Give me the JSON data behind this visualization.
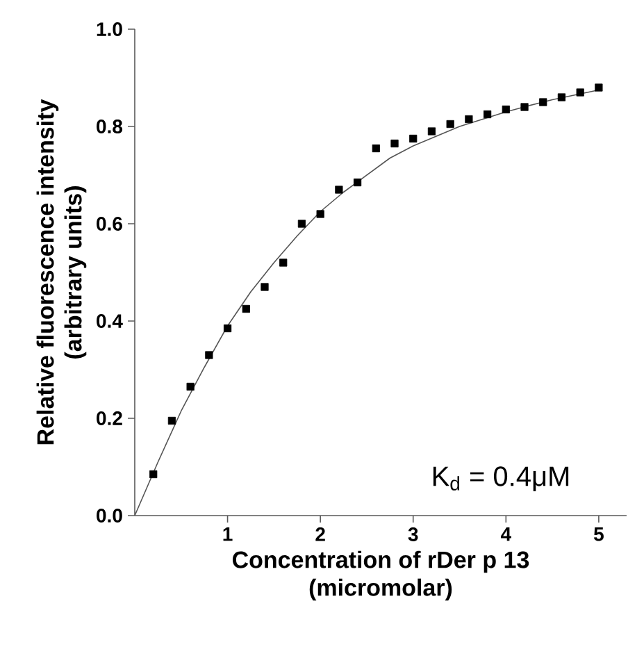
{
  "chart_data": {
    "type": "scatter",
    "xlabel": "Concentration of rDer p 13\n(micromolar)",
    "ylabel": "Relative fluorescence intensity\n(arbitrary units)",
    "xlim": [
      0,
      5.3
    ],
    "ylim": [
      0,
      1.0
    ],
    "xticks": [
      1,
      2,
      3,
      4,
      5
    ],
    "yticks": [
      {
        "value": 0,
        "label": "0.0"
      },
      {
        "value": 0.2,
        "label": "0.2"
      },
      {
        "value": 0.4,
        "label": "0.4"
      },
      {
        "value": 0.6,
        "label": "0.6"
      },
      {
        "value": 0.8,
        "label": "0.8"
      },
      {
        "value": 1.0,
        "label": "1.0"
      }
    ],
    "grid": false,
    "series": [
      {
        "marker": "square",
        "color": "#000000",
        "x": [
          0.2,
          0.4,
          0.6,
          0.8,
          1.0,
          1.2,
          1.4,
          1.6,
          1.8,
          2.0,
          2.2,
          2.4,
          2.6,
          2.8,
          3.0,
          3.2,
          3.4,
          3.6,
          3.8,
          4.0,
          4.2,
          4.4,
          4.6,
          4.8,
          5.0
        ],
        "values": [
          0.085,
          0.195,
          0.265,
          0.33,
          0.385,
          0.425,
          0.47,
          0.52,
          0.6,
          0.62,
          0.67,
          0.685,
          0.755,
          0.765,
          0.775,
          0.79,
          0.805,
          0.815,
          0.825,
          0.835,
          0.84,
          0.85,
          0.86,
          0.87,
          0.88
        ]
      },
      {
        "type": "line",
        "color": "#555555",
        "x": [
          0,
          0.25,
          0.5,
          0.75,
          1.0,
          1.25,
          1.5,
          1.75,
          2.0,
          2.25,
          2.5,
          2.75,
          3.0,
          3.25,
          3.5,
          3.75,
          4.0,
          4.25,
          4.5,
          4.75,
          5.0
        ],
        "values": [
          0,
          0.11,
          0.215,
          0.305,
          0.39,
          0.46,
          0.52,
          0.575,
          0.625,
          0.665,
          0.7,
          0.735,
          0.76,
          0.78,
          0.8,
          0.815,
          0.83,
          0.843,
          0.855,
          0.865,
          0.875
        ]
      }
    ],
    "annotations": [
      "K$_{d}$ = 0.4μM"
    ]
  }
}
